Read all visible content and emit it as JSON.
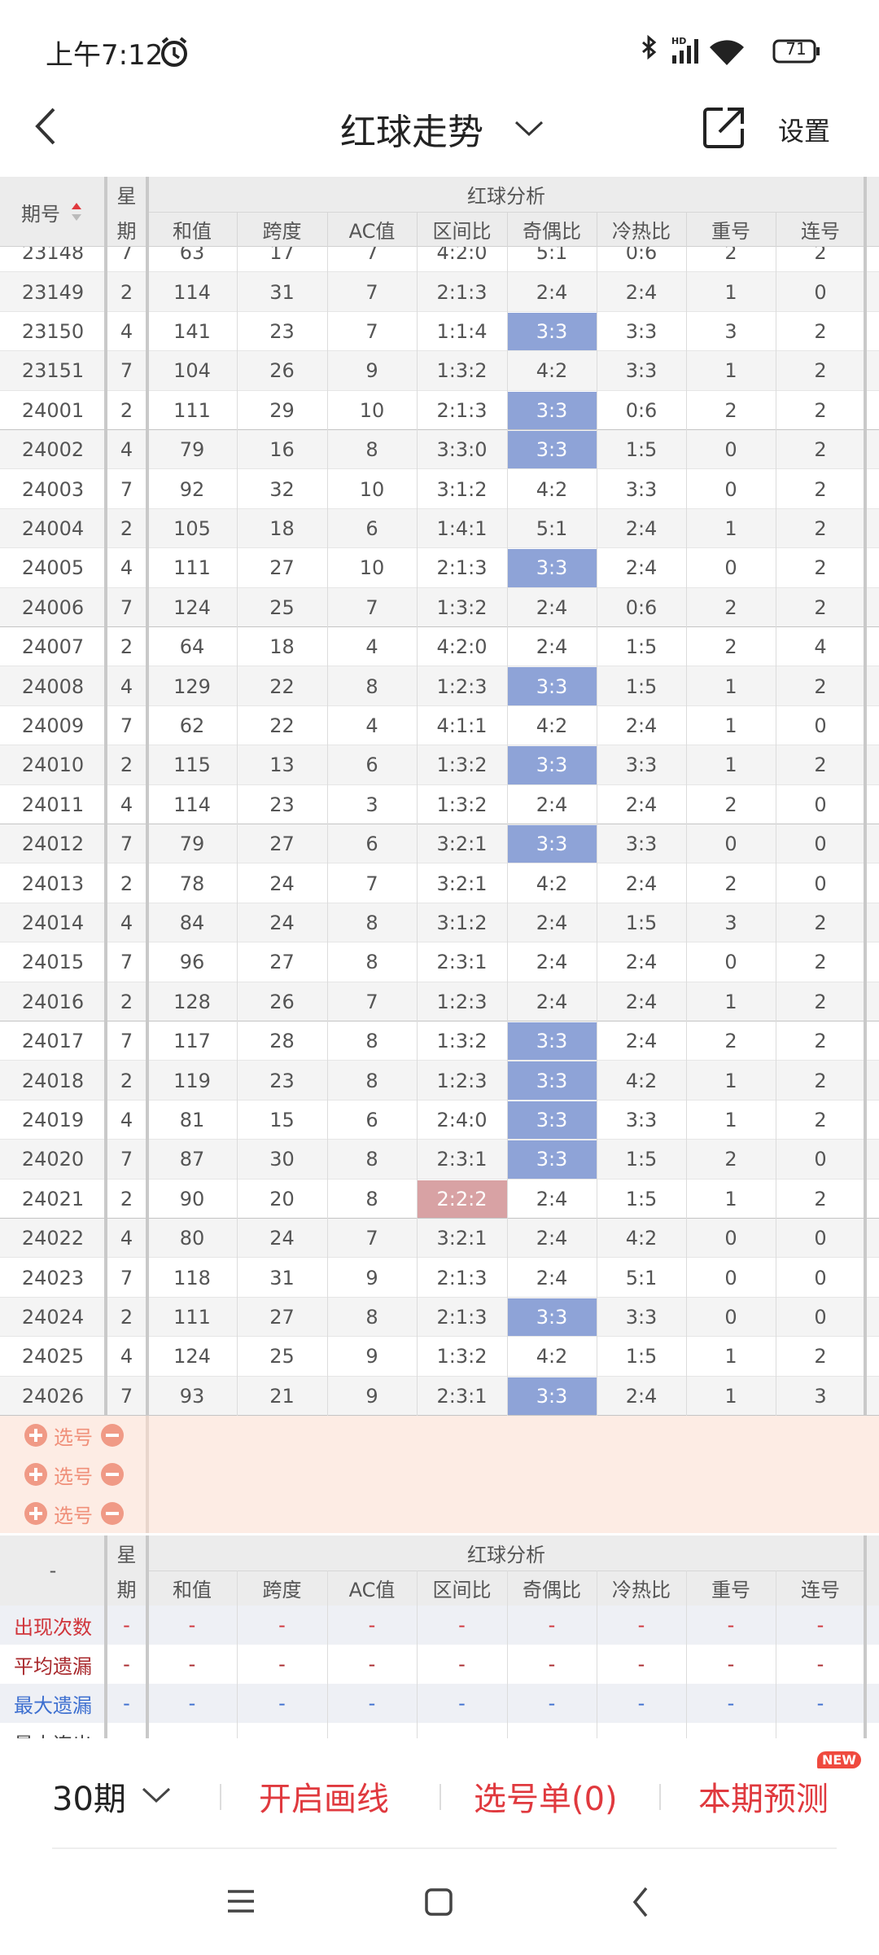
{
  "status_bar": {
    "time": "上午7:12",
    "battery": "71"
  },
  "header": {
    "title": "红球走势",
    "settings": "设置"
  },
  "table": {
    "col_issue": "期号",
    "col_week": [
      "星",
      "期"
    ],
    "group": "红球分析",
    "columns": [
      "和值",
      "跨度",
      "AC值",
      "区间比",
      "奇偶比",
      "冷热比",
      "重号",
      "连号"
    ],
    "rows": [
      [
        "23148",
        7,
        63,
        17,
        7,
        "4:2:0",
        "5:1",
        "0:6",
        2,
        2
      ],
      [
        "23149",
        2,
        114,
        31,
        7,
        "2:1:3",
        "2:4",
        "2:4",
        1,
        0
      ],
      [
        "23150",
        4,
        141,
        23,
        7,
        "1:1:4",
        "3:3",
        "3:3",
        3,
        2
      ],
      [
        "23151",
        7,
        104,
        26,
        9,
        "1:3:2",
        "4:2",
        "3:3",
        1,
        2
      ],
      [
        "24001",
        2,
        111,
        29,
        10,
        "2:1:3",
        "3:3",
        "0:6",
        2,
        2
      ],
      [
        "24002",
        4,
        79,
        16,
        8,
        "3:3:0",
        "3:3",
        "1:5",
        0,
        2
      ],
      [
        "24003",
        7,
        92,
        32,
        10,
        "3:1:2",
        "4:2",
        "3:3",
        0,
        2
      ],
      [
        "24004",
        2,
        105,
        18,
        6,
        "1:4:1",
        "5:1",
        "2:4",
        1,
        2
      ],
      [
        "24005",
        4,
        111,
        27,
        10,
        "2:1:3",
        "3:3",
        "2:4",
        0,
        2
      ],
      [
        "24006",
        7,
        124,
        25,
        7,
        "1:3:2",
        "2:4",
        "0:6",
        2,
        2
      ],
      [
        "24007",
        2,
        64,
        18,
        4,
        "4:2:0",
        "2:4",
        "1:5",
        2,
        4
      ],
      [
        "24008",
        4,
        129,
        22,
        8,
        "1:2:3",
        "3:3",
        "1:5",
        1,
        2
      ],
      [
        "24009",
        7,
        62,
        22,
        4,
        "4:1:1",
        "4:2",
        "2:4",
        1,
        0
      ],
      [
        "24010",
        2,
        115,
        13,
        6,
        "1:3:2",
        "3:3",
        "3:3",
        1,
        2
      ],
      [
        "24011",
        4,
        114,
        23,
        3,
        "1:3:2",
        "2:4",
        "2:4",
        2,
        0
      ],
      [
        "24012",
        7,
        79,
        27,
        6,
        "3:2:1",
        "3:3",
        "3:3",
        0,
        0
      ],
      [
        "24013",
        2,
        78,
        24,
        7,
        "3:2:1",
        "4:2",
        "2:4",
        2,
        0
      ],
      [
        "24014",
        4,
        84,
        24,
        8,
        "3:1:2",
        "2:4",
        "1:5",
        3,
        2
      ],
      [
        "24015",
        7,
        96,
        27,
        8,
        "2:3:1",
        "2:4",
        "2:4",
        0,
        2
      ],
      [
        "24016",
        2,
        128,
        26,
        7,
        "1:2:3",
        "2:4",
        "2:4",
        1,
        2
      ],
      [
        "24017",
        7,
        117,
        28,
        8,
        "1:3:2",
        "3:3",
        "2:4",
        2,
        2
      ],
      [
        "24018",
        2,
        119,
        23,
        8,
        "1:2:3",
        "3:3",
        "4:2",
        1,
        2
      ],
      [
        "24019",
        4,
        81,
        15,
        6,
        "2:4:0",
        "3:3",
        "3:3",
        1,
        2
      ],
      [
        "24020",
        7,
        87,
        30,
        8,
        "2:3:1",
        "3:3",
        "1:5",
        2,
        0
      ],
      [
        "24021",
        2,
        90,
        20,
        8,
        "2:2:2",
        "2:4",
        "1:5",
        1,
        2
      ],
      [
        "24022",
        4,
        80,
        24,
        7,
        "3:2:1",
        "2:4",
        "4:2",
        0,
        0
      ],
      [
        "24023",
        7,
        118,
        31,
        9,
        "2:1:3",
        "2:4",
        "5:1",
        0,
        0
      ],
      [
        "24024",
        2,
        111,
        27,
        8,
        "2:1:3",
        "3:3",
        "3:3",
        0,
        0
      ],
      [
        "24025",
        4,
        124,
        25,
        9,
        "1:3:2",
        "4:2",
        "1:5",
        1,
        2
      ],
      [
        "24026",
        7,
        93,
        21,
        9,
        "2:3:1",
        "3:3",
        "2:4",
        1,
        3
      ]
    ]
  },
  "picker": {
    "rows": [
      "选号",
      "选号",
      "选号"
    ]
  },
  "stats": {
    "corner": "-",
    "col_week": [
      "星",
      "期"
    ],
    "group": "红球分析",
    "columns": [
      "和值",
      "跨度",
      "AC值",
      "区间比",
      "奇偶比",
      "冷热比",
      "重号",
      "连号"
    ],
    "rows": [
      {
        "label": "出现次数",
        "cells": [
          "-",
          "-",
          "-",
          "-",
          "-",
          "-",
          "-",
          "-",
          "-"
        ]
      },
      {
        "label": "平均遗漏",
        "cells": [
          "-",
          "-",
          "-",
          "-",
          "-",
          "-",
          "-",
          "-",
          "-"
        ]
      },
      {
        "label": "最大遗漏",
        "cells": [
          "-",
          "-",
          "-",
          "-",
          "-",
          "-",
          "-",
          "-",
          "-"
        ]
      },
      {
        "label": "最大连出",
        "cells": [
          "-",
          "-",
          "-",
          "-",
          "-",
          "-",
          "-",
          "-",
          "-"
        ]
      }
    ]
  },
  "bottom_bar": {
    "period": "30期",
    "draw": "开启画线",
    "list": "选号单(0)",
    "predict": "本期预测",
    "badge": "NEW"
  }
}
